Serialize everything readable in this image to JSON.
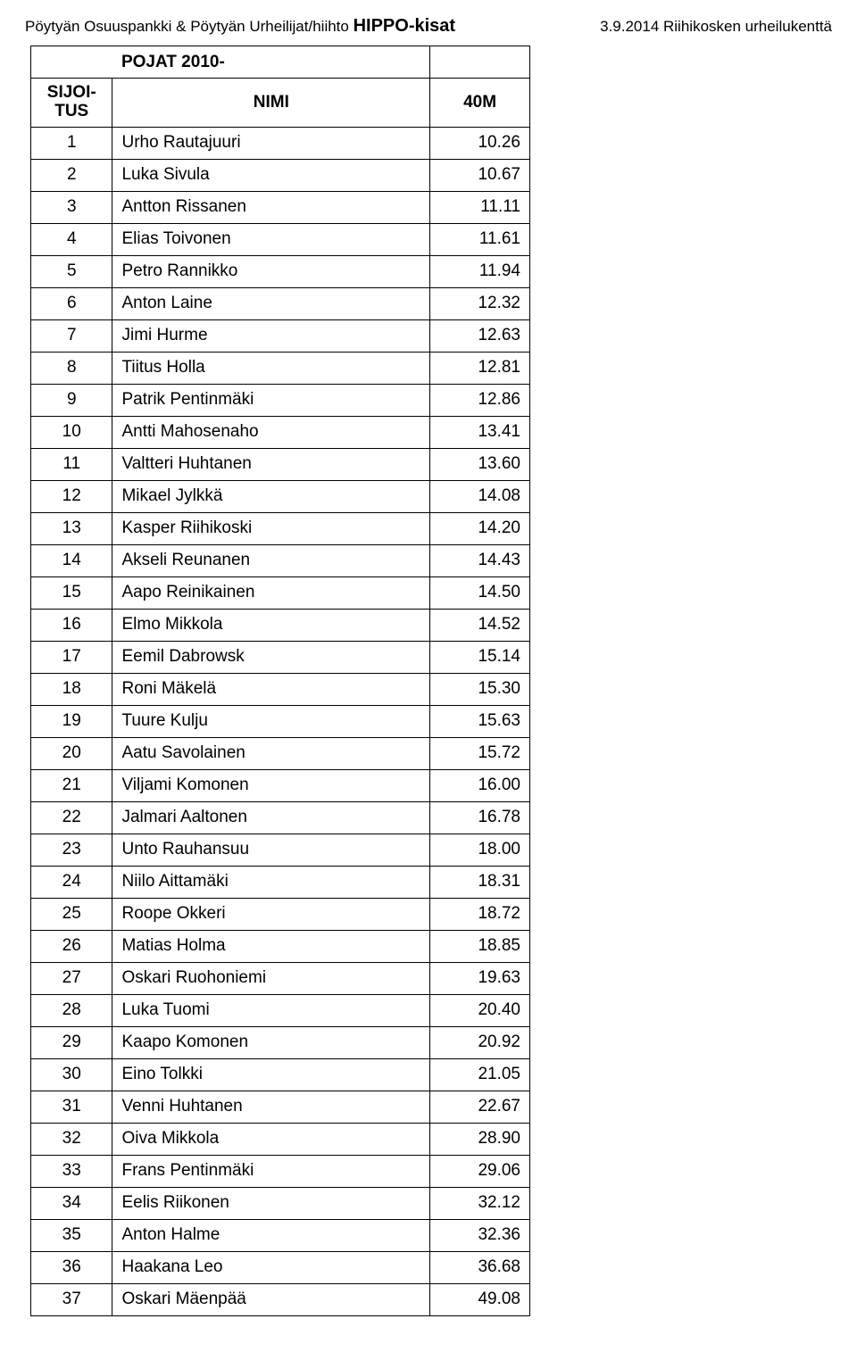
{
  "header": {
    "left_prefix": "Pöytyän Osuuspankki & Pöytyän Urheilijat/hiihto ",
    "left_bold": "HIPPO-kisat",
    "right": "3.9.2014 Riihikosken urheilukenttä"
  },
  "table": {
    "category": "POJAT 2010-",
    "rank_header": "SIJOI-TUS",
    "name_header": "NIMI",
    "value_header": "40M",
    "rows": [
      {
        "rank": "1",
        "name": "Urho Rautajuuri",
        "val": "10.26"
      },
      {
        "rank": "2",
        "name": "Luka Sivula",
        "val": "10.67"
      },
      {
        "rank": "3",
        "name": "Antton Rissanen",
        "val": "11.11"
      },
      {
        "rank": "4",
        "name": "Elias Toivonen",
        "val": "11.61"
      },
      {
        "rank": "5",
        "name": "Petro Rannikko",
        "val": "11.94"
      },
      {
        "rank": "6",
        "name": "Anton Laine",
        "val": "12.32"
      },
      {
        "rank": "7",
        "name": "Jimi Hurme",
        "val": "12.63"
      },
      {
        "rank": "8",
        "name": "Tiitus Holla",
        "val": "12.81"
      },
      {
        "rank": "9",
        "name": "Patrik Pentinmäki",
        "val": "12.86"
      },
      {
        "rank": "10",
        "name": "Antti Mahosenaho",
        "val": "13.41"
      },
      {
        "rank": "11",
        "name": "Valtteri Huhtanen",
        "val": "13.60"
      },
      {
        "rank": "12",
        "name": "Mikael Jylkkä",
        "val": "14.08"
      },
      {
        "rank": "13",
        "name": "Kasper Riihikoski",
        "val": "14.20"
      },
      {
        "rank": "14",
        "name": "Akseli Reunanen",
        "val": "14.43"
      },
      {
        "rank": "15",
        "name": "Aapo Reinikainen",
        "val": "14.50"
      },
      {
        "rank": "16",
        "name": "Elmo Mikkola",
        "val": "14.52"
      },
      {
        "rank": "17",
        "name": "Eemil Dabrowsk",
        "val": "15.14"
      },
      {
        "rank": "18",
        "name": "Roni Mäkelä",
        "val": "15.30"
      },
      {
        "rank": "19",
        "name": "Tuure Kulju",
        "val": "15.63"
      },
      {
        "rank": "20",
        "name": "Aatu Savolainen",
        "val": "15.72"
      },
      {
        "rank": "21",
        "name": "Viljami Komonen",
        "val": "16.00"
      },
      {
        "rank": "22",
        "name": "Jalmari Aaltonen",
        "val": "16.78"
      },
      {
        "rank": "23",
        "name": "Unto Rauhansuu",
        "val": "18.00"
      },
      {
        "rank": "24",
        "name": "Niilo Aittamäki",
        "val": "18.31"
      },
      {
        "rank": "25",
        "name": "Roope Okkeri",
        "val": "18.72"
      },
      {
        "rank": "26",
        "name": "Matias Holma",
        "val": "18.85"
      },
      {
        "rank": "27",
        "name": "Oskari Ruohoniemi",
        "val": "19.63"
      },
      {
        "rank": "28",
        "name": "Luka Tuomi",
        "val": "20.40"
      },
      {
        "rank": "29",
        "name": "Kaapo Komonen",
        "val": "20.92"
      },
      {
        "rank": "30",
        "name": "Eino Tolkki",
        "val": "21.05"
      },
      {
        "rank": "31",
        "name": "Venni Huhtanen",
        "val": "22.67"
      },
      {
        "rank": "32",
        "name": "Oiva Mikkola",
        "val": "28.90"
      },
      {
        "rank": "33",
        "name": "Frans Pentinmäki",
        "val": "29.06"
      },
      {
        "rank": "34",
        "name": "Eelis Riikonen",
        "val": "32.12"
      },
      {
        "rank": "35",
        "name": "Anton Halme",
        "val": "32.36"
      },
      {
        "rank": "36",
        "name": "Haakana Leo",
        "val": "36.68"
      },
      {
        "rank": "37",
        "name": "Oskari Mäenpää",
        "val": "49.08"
      }
    ]
  }
}
